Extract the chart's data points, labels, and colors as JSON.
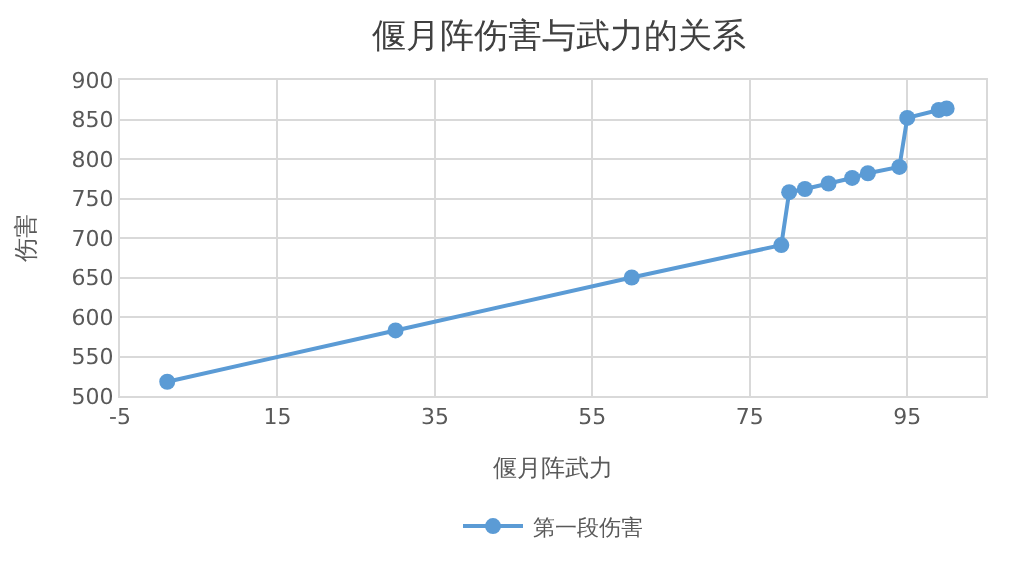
{
  "chart_data": {
    "type": "line",
    "title": "偃月阵伤害与武力的关系",
    "xlabel": "偃月阵武力",
    "ylabel": "伤害",
    "series": [
      {
        "name": "第一段伤害",
        "color": "#5b9bd5",
        "x": [
          1,
          30,
          60,
          79,
          80,
          82,
          85,
          88,
          90,
          94,
          95,
          99,
          100
        ],
        "values": [
          518,
          583,
          650,
          691,
          758,
          762,
          769,
          776,
          782,
          790,
          852,
          862,
          864
        ]
      }
    ],
    "xlim": [
      -5,
      105
    ],
    "xticks": [
      -5,
      15,
      35,
      55,
      75,
      95
    ],
    "ylim": [
      500,
      900
    ],
    "yticks": [
      500,
      550,
      600,
      650,
      700,
      750,
      800,
      850,
      900
    ],
    "grid": true,
    "legend": "bottom",
    "marker": "circle",
    "line_style": "solid"
  }
}
